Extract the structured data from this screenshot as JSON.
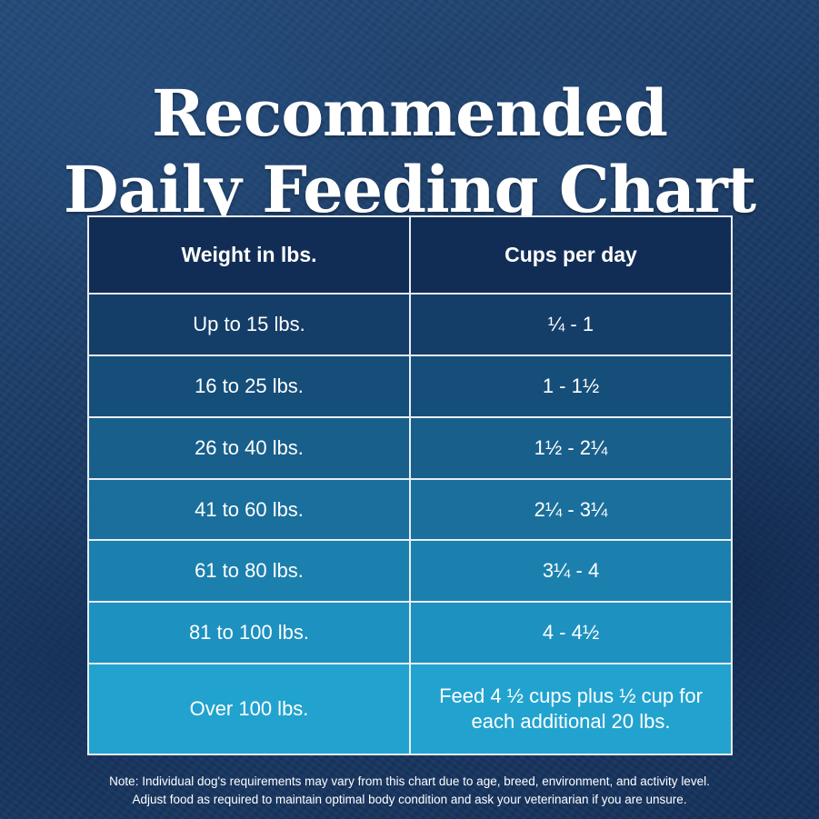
{
  "title": {
    "line1": "Recommended",
    "line2": "Daily Feeding Chart"
  },
  "table": {
    "headers": {
      "weight": "Weight in lbs.",
      "cups": "Cups per day"
    },
    "rows": [
      {
        "weight": "Up to 15 lbs.",
        "cups": "¼ - 1"
      },
      {
        "weight": "16 to 25 lbs.",
        "cups": "1 - 1½"
      },
      {
        "weight": "26 to 40 lbs.",
        "cups": "1½ - 2¼"
      },
      {
        "weight": "41 to 60 lbs.",
        "cups": "2¼ - 3¼"
      },
      {
        "weight": "61 to 80 lbs.",
        "cups": "3¼ - 4"
      },
      {
        "weight": "81 to 100 lbs.",
        "cups": "4 - 4½"
      },
      {
        "weight": "Over 100 lbs.",
        "cups_line1": "Feed 4 ½ cups plus ½ cup for",
        "cups_line2": "each additional 20 lbs."
      }
    ],
    "colors": {
      "header": "#122d55",
      "row1": "#143e68",
      "row2": "#164e7a",
      "row3": "#185f8b",
      "row4": "#1a6f9c",
      "row5": "#1b80ae",
      "row6": "#1d91bf",
      "row7": "#22a3cf",
      "border": "#e9eef4"
    }
  },
  "note": {
    "line1": "Note: Individual dog's requirements may vary from this chart due to age, breed, environment, and activity level.",
    "line2": "Adjust food as required to maintain optimal body condition and ask your veterinarian if you are unsure."
  }
}
